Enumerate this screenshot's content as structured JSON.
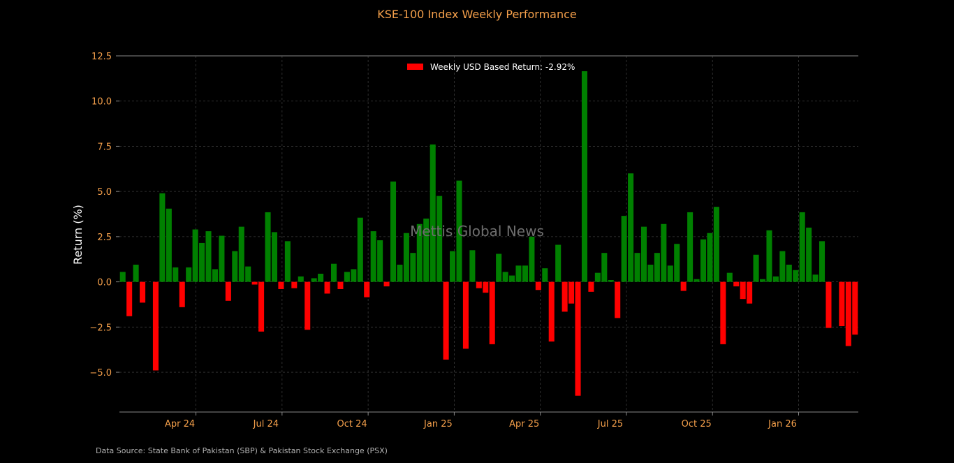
{
  "colors": {
    "background": "#000000",
    "positive": "#008000",
    "negative": "#ff0000",
    "accent": "#f5a04b",
    "grid": "#3a3a3a",
    "axis": "#888888",
    "text": "#ffffff",
    "watermark": "#6e6e6e",
    "source": "#b3b3b3"
  },
  "watermark": "Mettis Global News",
  "source_note": "Data Source: State Bank of Pakistan (SBP) & Pakistan Stock Exchange (PSX)",
  "chart_data": {
    "type": "bar",
    "title": "KSE-100 Index Weekly Performance",
    "xlabel": "",
    "ylabel": "Return (%)",
    "ylim": [
      -7.2,
      12.5
    ],
    "yticks": [
      -5.0,
      -2.5,
      0.0,
      2.5,
      5.0,
      7.5,
      10.0,
      12.5
    ],
    "ytick_labels": [
      "−5.0",
      "−2.5",
      "0.0",
      "2.5",
      "5.0",
      "7.5",
      "10.0",
      "12.5"
    ],
    "xticks": [
      "Apr 24",
      "Jul 24",
      "Oct 24",
      "Jan 25",
      "Apr 25",
      "Jul 25",
      "Oct 25",
      "Jan 26"
    ],
    "grid": true,
    "legend": {
      "position": "top-center",
      "label": "Weekly USD Based Return: -2.92%",
      "color": "#ff0000"
    },
    "series": [
      {
        "values": [
          0.55,
          -1.9,
          0.95,
          -1.15,
          0.0,
          -4.9,
          4.9,
          4.05,
          0.8,
          -1.4,
          0.8,
          2.9,
          2.15,
          2.8,
          0.7,
          2.55,
          -1.05,
          1.7,
          3.05,
          0.85,
          -0.15,
          -2.75,
          3.85,
          2.75,
          -0.4,
          2.25,
          -0.35,
          0.3,
          -2.65,
          0.2,
          0.45,
          -0.65,
          1.0,
          -0.4,
          0.55,
          0.7,
          3.55,
          -0.85,
          2.8,
          2.3,
          -0.25,
          5.55,
          0.95,
          2.7,
          1.6,
          3.2,
          3.5,
          7.6,
          4.75,
          -4.3,
          1.7,
          5.6,
          -3.7,
          1.75,
          -0.35,
          -0.6,
          -3.45,
          1.55,
          0.55,
          0.35,
          0.9,
          0.9,
          2.5,
          -0.45,
          0.75,
          -3.3,
          2.05,
          -1.65,
          -1.2,
          -6.3,
          11.65,
          -0.55,
          0.5,
          1.6,
          0.1,
          -2.0,
          3.65,
          6.0,
          1.6,
          3.05,
          0.95,
          1.6,
          3.2,
          0.9,
          2.1,
          -0.5,
          3.85,
          0.15,
          2.35,
          2.7,
          4.15,
          -3.45,
          0.5,
          -0.25,
          -0.95,
          -1.2,
          1.5,
          0.15,
          2.85,
          0.3,
          1.7,
          0.95,
          0.65,
          3.85,
          3.0,
          0.4,
          2.25,
          -2.55,
          0.0,
          -2.45,
          -3.55,
          -2.92
        ]
      }
    ]
  }
}
